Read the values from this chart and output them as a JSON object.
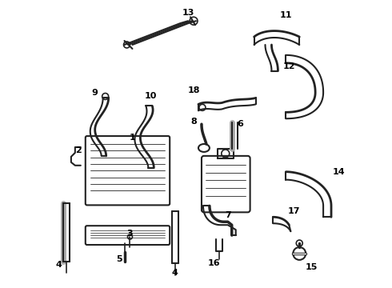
{
  "bg_color": "#ffffff",
  "line_color": "#222222",
  "label_color": "#000000",
  "fig_width": 4.9,
  "fig_height": 3.6,
  "dpi": 100
}
